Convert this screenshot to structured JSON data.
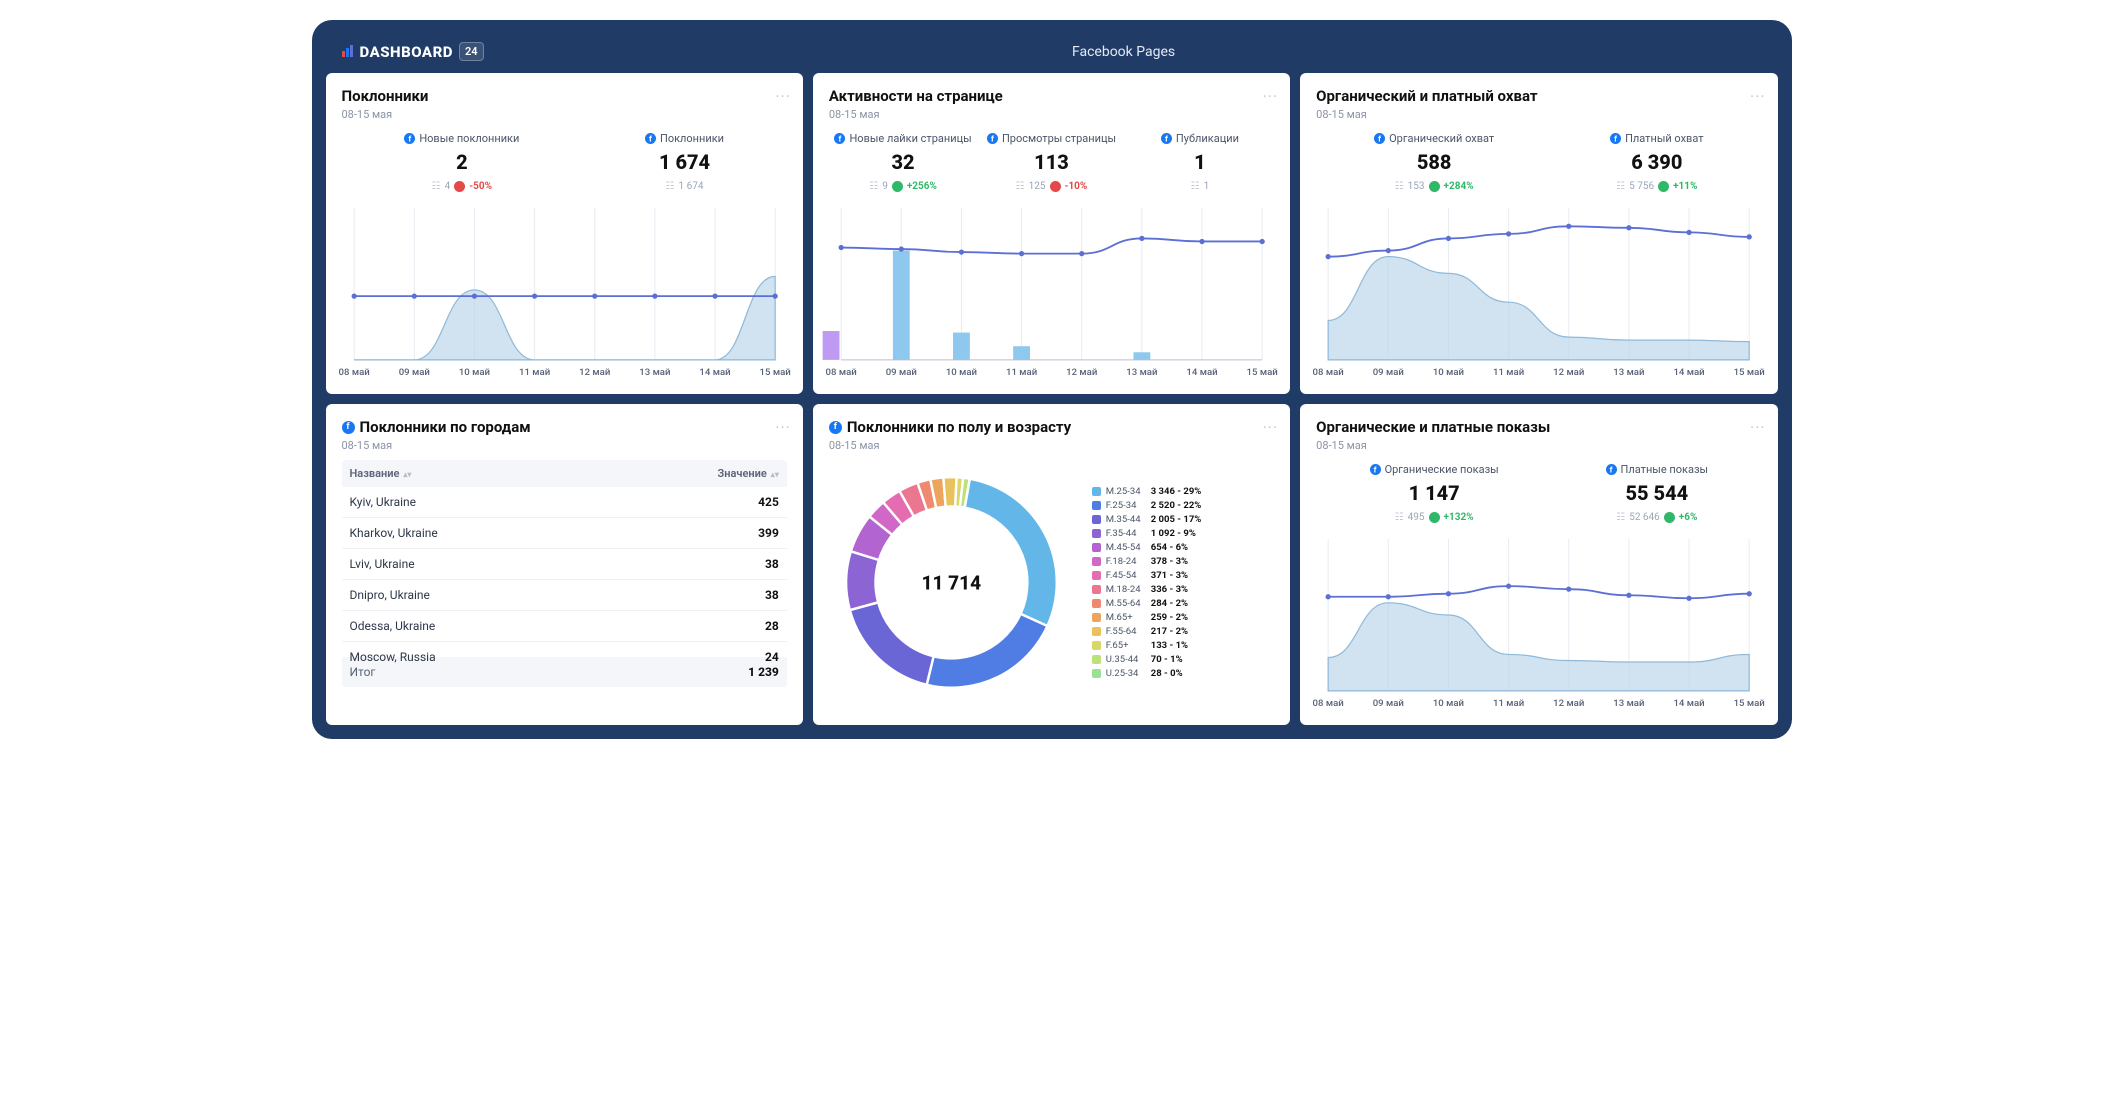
{
  "header": {
    "logo": "DASHBOARD",
    "badge": "24",
    "subtitle": "Facebook Pages"
  },
  "common": {
    "dateRange": "08-15 мая"
  },
  "xlabels": [
    "08 май",
    "09 май",
    "10 май",
    "11 май",
    "12 май",
    "13 май",
    "14 май",
    "15 май"
  ],
  "colors": {
    "line_primary": "#5b6fd4",
    "area_fill": "#b9d4e9",
    "area_stroke": "#8fb9d9",
    "bar_blue": "#8fc8ee",
    "bar_purple": "#be9af2",
    "grid": "#e8ecf2",
    "axis": "#b8c1d1"
  },
  "card1": {
    "title": "Поклонники",
    "kpis": [
      {
        "label": "Новые поклонники",
        "value": "2",
        "prev": "4",
        "delta": "-50%",
        "dir": "down"
      },
      {
        "label": "Поклонники",
        "value": "1 674",
        "prev": "1 674"
      }
    ],
    "line": [
      42,
      42,
      42,
      42,
      42,
      42,
      42,
      42
    ],
    "area": [
      0,
      0,
      46,
      0,
      0,
      0,
      0,
      55
    ]
  },
  "card2": {
    "title": "Активности на странице",
    "kpis": [
      {
        "label": "Новые лайки страницы",
        "value": "32",
        "prev": "9",
        "delta": "+256%",
        "dir": "up"
      },
      {
        "label": "Просмотры страницы",
        "value": "113",
        "prev": "125",
        "delta": "-10%",
        "dir": "down"
      },
      {
        "label": "Публикации",
        "value": "1",
        "prev": "1"
      }
    ],
    "line": [
      74,
      73,
      71,
      70,
      70,
      80,
      78,
      78
    ],
    "bars_blue": [
      0,
      72,
      18,
      9,
      0,
      5,
      0,
      0
    ],
    "bars_purple": [
      19,
      0,
      0,
      0,
      0,
      0,
      0,
      0
    ]
  },
  "card3": {
    "title": "Органический и платный охват",
    "kpis": [
      {
        "label": "Органический охват",
        "value": "588",
        "prev": "153",
        "delta": "+284%",
        "dir": "up"
      },
      {
        "label": "Платный охват",
        "value": "6 390",
        "prev": "5 756",
        "delta": "+11%",
        "dir": "up"
      }
    ],
    "line": [
      68,
      72,
      80,
      83,
      88,
      87,
      84,
      81
    ],
    "area": [
      26,
      68,
      57,
      38,
      15,
      13,
      13,
      12
    ]
  },
  "card4": {
    "title": "Поклонники по городам",
    "headers": {
      "name": "Название",
      "value": "Значение"
    },
    "rows": [
      {
        "name": "Kyiv, Ukraine",
        "value": "425"
      },
      {
        "name": "Kharkov, Ukraine",
        "value": "399"
      },
      {
        "name": "Lviv, Ukraine",
        "value": "38"
      },
      {
        "name": "Dnipro, Ukraine",
        "value": "38"
      },
      {
        "name": "Odessa, Ukraine",
        "value": "28"
      },
      {
        "name": "Moscow, Russia",
        "value": "24"
      }
    ],
    "footer": {
      "name": "Итог",
      "value": "1 239"
    }
  },
  "card5": {
    "title": "Поклонники по полу и возрасту",
    "center": "11 714",
    "segments": [
      {
        "k": "M.25-34",
        "v": "3 346",
        "p": 29,
        "color": "#62b6e8"
      },
      {
        "k": "F.25-34",
        "v": "2 520",
        "p": 22,
        "color": "#4f7de3"
      },
      {
        "k": "M.35-44",
        "v": "2 005",
        "p": 17,
        "color": "#6a66d6"
      },
      {
        "k": "F.35-44",
        "v": "1 092",
        "p": 9,
        "color": "#8d64d4"
      },
      {
        "k": "M.45-54",
        "v": "654",
        "p": 6,
        "color": "#b264d0"
      },
      {
        "k": "F.18-24",
        "v": "378",
        "p": 3,
        "color": "#d167c7"
      },
      {
        "k": "F.45-54",
        "v": "371",
        "p": 3,
        "color": "#e36db0"
      },
      {
        "k": "M.18-24",
        "v": "336",
        "p": 3,
        "color": "#ea7690"
      },
      {
        "k": "M.55-64",
        "v": "284",
        "p": 2,
        "color": "#ed8a70"
      },
      {
        "k": "M.65+",
        "v": "259",
        "p": 2,
        "color": "#eda55e"
      },
      {
        "k": "F.55-64",
        "v": "217",
        "p": 2,
        "color": "#e9c25d"
      },
      {
        "k": "F.65+",
        "v": "133",
        "p": 1,
        "color": "#d9d767"
      },
      {
        "k": "U.35-44",
        "v": "70",
        "p": 1,
        "color": "#bce17a"
      },
      {
        "k": "U.25-34",
        "v": "28",
        "p": 0,
        "color": "#98e294"
      }
    ]
  },
  "card6": {
    "title": "Органические и платные показы",
    "kpis": [
      {
        "label": "Органические показы",
        "value": "1 147",
        "prev": "495",
        "delta": "+132%",
        "dir": "up"
      },
      {
        "label": "Платные показы",
        "value": "55 544",
        "prev": "52 646",
        "delta": "+6%",
        "dir": "up"
      }
    ],
    "line": [
      62,
      62,
      64,
      69,
      67,
      63,
      61,
      64
    ],
    "area": [
      22,
      58,
      50,
      24,
      20,
      19,
      19,
      24
    ]
  }
}
